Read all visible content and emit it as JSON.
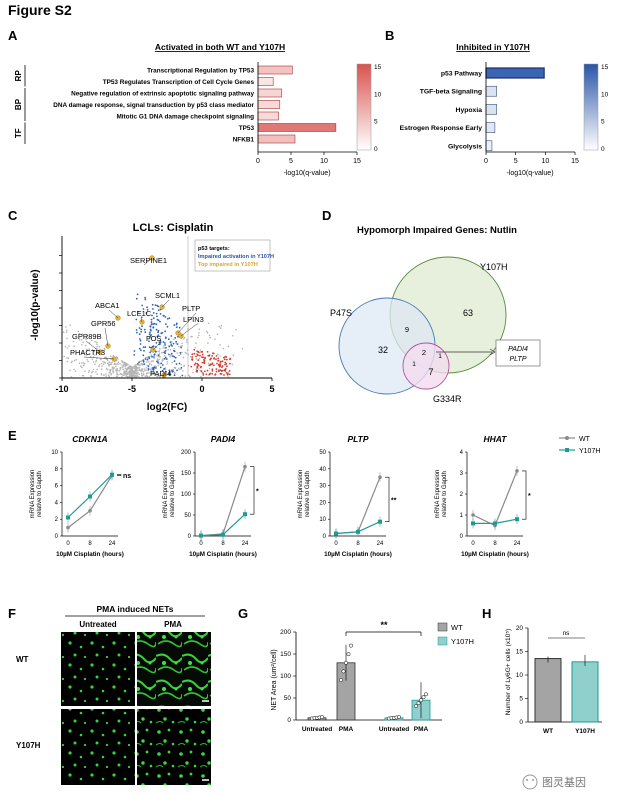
{
  "figure_title": "Figure S2",
  "panels": {
    "A": {
      "letter": "A",
      "title": "Activated in both WT and Y107H",
      "xlabel": "-log10(q-value)",
      "ticks": [
        "0",
        "5",
        "10",
        "15"
      ],
      "groups": [
        "RP",
        "BP",
        "TF"
      ],
      "colorbar_ticks": [
        "15",
        "10",
        "5",
        "0"
      ],
      "bars": [
        {
          "label": "Transcriptional Regulation by TP53",
          "value": 5.2
        },
        {
          "label": "TP53 Regulates Transcription of Cell Cycle Genes",
          "value": 2.3
        },
        {
          "label": "Negative regulation of extrinsic apoptotic signaling pathway",
          "value": 3.6
        },
        {
          "label": "DNA damage response, signal transduction by p53 class mediator",
          "value": 3.3
        },
        {
          "label": "Mitotic G1 DNA damage checkpoint signaling",
          "value": 3.1
        },
        {
          "label": "TP53",
          "value": 11.8
        },
        {
          "label": "NFKB1",
          "value": 5.6
        }
      ]
    },
    "B": {
      "letter": "B",
      "title": "Inhibited in Y107H",
      "xlabel": "-log10(q-value)",
      "ticks": [
        "0",
        "5",
        "10",
        "15"
      ],
      "colorbar_ticks": [
        "15",
        "10",
        "5",
        "0"
      ],
      "bars": [
        {
          "label": "p53 Pathway",
          "value": 9.8
        },
        {
          "label": "TGF-beta Signaling",
          "value": 1.8
        },
        {
          "label": "Hypoxia",
          "value": 1.8
        },
        {
          "label": "Estrogen Response Early",
          "value": 1.5
        },
        {
          "label": "Glycolysis",
          "value": 1.0
        }
      ]
    },
    "C": {
      "letter": "C",
      "title": "LCLs: Cisplatin",
      "ylabel": "-log10(p-value)",
      "xlabel": "log2(FC)",
      "xticks": [
        "-10",
        "-5",
        "0",
        "5"
      ],
      "legend": {
        "title": "p53 targets:",
        "blue": "Impaired activation in Y107H",
        "gold": "Top impaired in Y107H"
      },
      "genes": [
        "SERPINE1",
        "ABCA1",
        "LCE1C",
        "SCML1",
        "PLTP",
        "LPIN3",
        "GPR56",
        "GPR89B",
        "FOS",
        "PHACTR3",
        "PADI4"
      ]
    },
    "D": {
      "letter": "D",
      "title": "Hypomorph Impaired Genes: Nutlin",
      "sets": [
        "Y107H",
        "P47S",
        "G334R"
      ],
      "counts": {
        "p47s_only": "32",
        "y107h_only": "63",
        "g334r_only": "7",
        "p47s_y107h": "9",
        "all": "2",
        "p47s_g334r": "1",
        "y107h_g334r": "1"
      },
      "callout": [
        "PADI4",
        "PLTP"
      ]
    },
    "E": {
      "letter": "E",
      "ylabel1": "mRNA Expression",
      "ylabel2": "relative to Gapdh",
      "xlabel": "10µM Cisplatin (hours)",
      "xticks": [
        "0",
        "8",
        "24"
      ],
      "legend": [
        "WT",
        "Y107H"
      ],
      "colors": {
        "WT": "#8a8a8a",
        "Y107H": "#1f9a94"
      },
      "plots": [
        {
          "gene": "CDKN1A",
          "yticks": [
            "0",
            "2",
            "4",
            "6",
            "8",
            "10"
          ],
          "ymax": 10,
          "wt": [
            1.0,
            3.0,
            7.2
          ],
          "y107h": [
            2.2,
            4.7,
            7.3
          ],
          "sig": "ns"
        },
        {
          "gene": "PADI4",
          "yticks": [
            "0",
            "50",
            "100",
            "150",
            "200"
          ],
          "ymax": 200,
          "wt": [
            1,
            5,
            165
          ],
          "y107h": [
            1,
            3,
            52
          ],
          "sig": "*"
        },
        {
          "gene": "PLTP",
          "yticks": [
            "0",
            "10",
            "20",
            "30",
            "40",
            "50"
          ],
          "ymax": 50,
          "wt": [
            1.5,
            2.5,
            35
          ],
          "y107h": [
            1.5,
            2.5,
            8.5
          ],
          "sig": "**"
        },
        {
          "gene": "HHAT",
          "yticks": [
            "0",
            "1",
            "2",
            "3",
            "4"
          ],
          "ymax": 4,
          "wt": [
            1.0,
            0.5,
            3.1
          ],
          "y107h": [
            0.6,
            0.6,
            0.8
          ],
          "sig": "*"
        }
      ]
    },
    "F": {
      "letter": "F",
      "title": "PMA induced NETs",
      "cols": [
        "Untreated",
        "PMA"
      ],
      "rows": [
        "WT",
        "Y107H"
      ]
    },
    "G": {
      "letter": "G",
      "ylabel": "NET Area (um²/cell)",
      "yticks": [
        "0",
        "50",
        "100",
        "150",
        "200"
      ],
      "ymax": 200,
      "legend": [
        "WT",
        "Y107H"
      ],
      "groups": [
        "Untreated",
        "PMA",
        "Untreated",
        "PMA"
      ],
      "values": [
        5,
        130,
        5,
        45
      ],
      "sig": "**"
    },
    "H": {
      "letter": "H",
      "ylabel": "Number of Ly6G+ cells (x10⁵)",
      "yticks": [
        "0",
        "5",
        "10",
        "15",
        "20"
      ],
      "ymax": 20,
      "categories": [
        "WT",
        "Y107H"
      ],
      "values": [
        13.5,
        12.8
      ],
      "sig": "ns"
    }
  },
  "watermark": "图灵基因"
}
